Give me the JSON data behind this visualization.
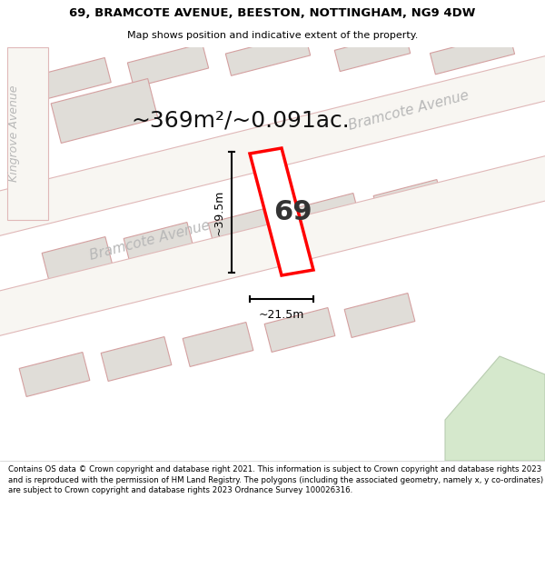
{
  "title_line1": "69, BRAMCOTE AVENUE, BEESTON, NOTTINGHAM, NG9 4DW",
  "title_line2": "Map shows position and indicative extent of the property.",
  "footer": "Contains OS data © Crown copyright and database right 2021. This information is subject to Crown copyright and database rights 2023 and is reproduced with the permission of HM Land Registry. The polygons (including the associated geometry, namely x, y co-ordinates) are subject to Crown copyright and database rights 2023 Ordnance Survey 100026316.",
  "area_label": "~369m²/~0.091ac.",
  "number_label": "69",
  "dim_vertical": "~39.5m",
  "dim_horizontal": "~21.5m",
  "road_label_lower": "Bramcote Avenue",
  "road_label_upper": "Bramcote Avenue",
  "street_label_left": "Kingrove Avenue",
  "map_bg": "#f0ede6",
  "block_fc": "#e0ddd8",
  "block_ec": "#d4a0a0",
  "road_fc": "#f8f6f2",
  "road_ec": "#e0b8b8",
  "property_ec": "#ff0000",
  "property_fc": "#ffffff",
  "green_fc": "#d5e8cc",
  "green_ec": "#b8ccb0",
  "dim_color": "#000000",
  "road_label_color": "#b8b8b8",
  "street_label_color": "#b8b8b8",
  "title_fc": "#ffffff",
  "footer_fc": "#ffffff",
  "title_fontsize": 9.5,
  "subtitle_fontsize": 8.0,
  "area_fontsize": 18,
  "num_fontsize": 22,
  "dim_fontsize": 9,
  "road_label_fontsize": 11,
  "street_label_fontsize": 9
}
